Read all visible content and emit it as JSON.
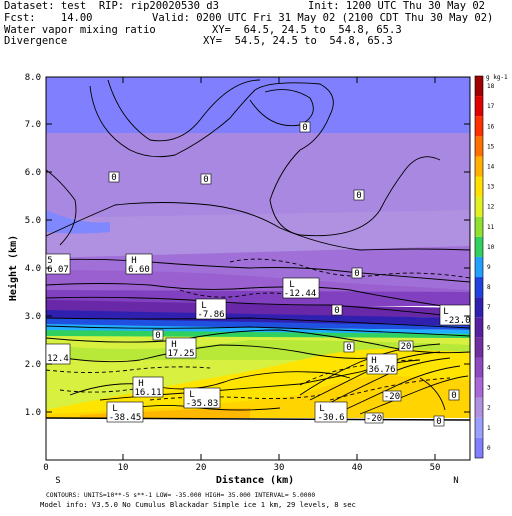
{
  "header": {
    "dataset": "Dataset: test  RIP: rip20020530 d3",
    "init": "Init: 1200 UTC Thu 30 May 02",
    "fcst": "Fcst:    14.00",
    "valid": "Valid: 0200 UTC Fri 31 May 02 (2100 CDT Thu 30 May 02)",
    "field1": "Water vapor mixing ratio",
    "xy1": "XY=  64.5, 24.5 to  54.8, 65.3",
    "field2": "Divergence",
    "xy2": "XY=  54.5, 24.5 to  54.8, 65.3"
  },
  "axes": {
    "ylabel": "Height (km)",
    "xlabel": "Distance (km)",
    "yticks": [
      "1.0",
      "2.0",
      "3.0",
      "4.0",
      "5.0",
      "6.0",
      "7.0",
      "8.0"
    ],
    "xticks": [
      "0",
      "10",
      "20",
      "30",
      "40",
      "50"
    ],
    "left_end": "S",
    "right_end": "N"
  },
  "colorbar": {
    "unit": "g kg-1",
    "labels": [
      "0",
      "1",
      "2",
      "3",
      "4",
      "5",
      "6",
      "7",
      "8",
      "9",
      "10",
      "11",
      "12",
      "13",
      "14",
      "15",
      "16",
      "17",
      "18"
    ],
    "colors": [
      "#8080ff",
      "#9aa0ff",
      "#b090e0",
      "#a868d8",
      "#9048c0",
      "#7030a0",
      "#5820a0",
      "#3020b0",
      "#2040e0",
      "#20a0ff",
      "#30d060",
      "#90e030",
      "#e0f020",
      "#ffe000",
      "#ffb000",
      "#ff7000",
      "#ff3000",
      "#e00000",
      "#a00000"
    ]
  },
  "labels": {
    "h1": "H",
    "h1v": "6.60",
    "l1": "L",
    "l1v": "-12.44",
    "l2": "L",
    "l2v": "-7.86",
    "h2": "H",
    "h2v": "17.25",
    "h3": "H",
    "h3v": "16.11",
    "l3": "L",
    "l3v": "-35.83",
    "l4": "L",
    "l4v": "-38.45",
    "l5": "L",
    "l5v": "-30.6",
    "h4": "H",
    "h4v": "36.76",
    "edge1": "6.07",
    "edge2": "12.4",
    "edge3": "-23.0",
    "edge4": "L",
    "edge5": "5",
    "zero": "0",
    "m20": "-20",
    "p20": "20"
  },
  "footer": {
    "contours": "CONTOURS:  UNITS=10**-5 s**-1   LOW= -35.000      HIGH=  35.000       INTERVAL=   5.0000",
    "model": "Model info: V3.5.0 No Cumulus Blackadar  Simple ice    1 km,  29 levels,    8 sec"
  }
}
